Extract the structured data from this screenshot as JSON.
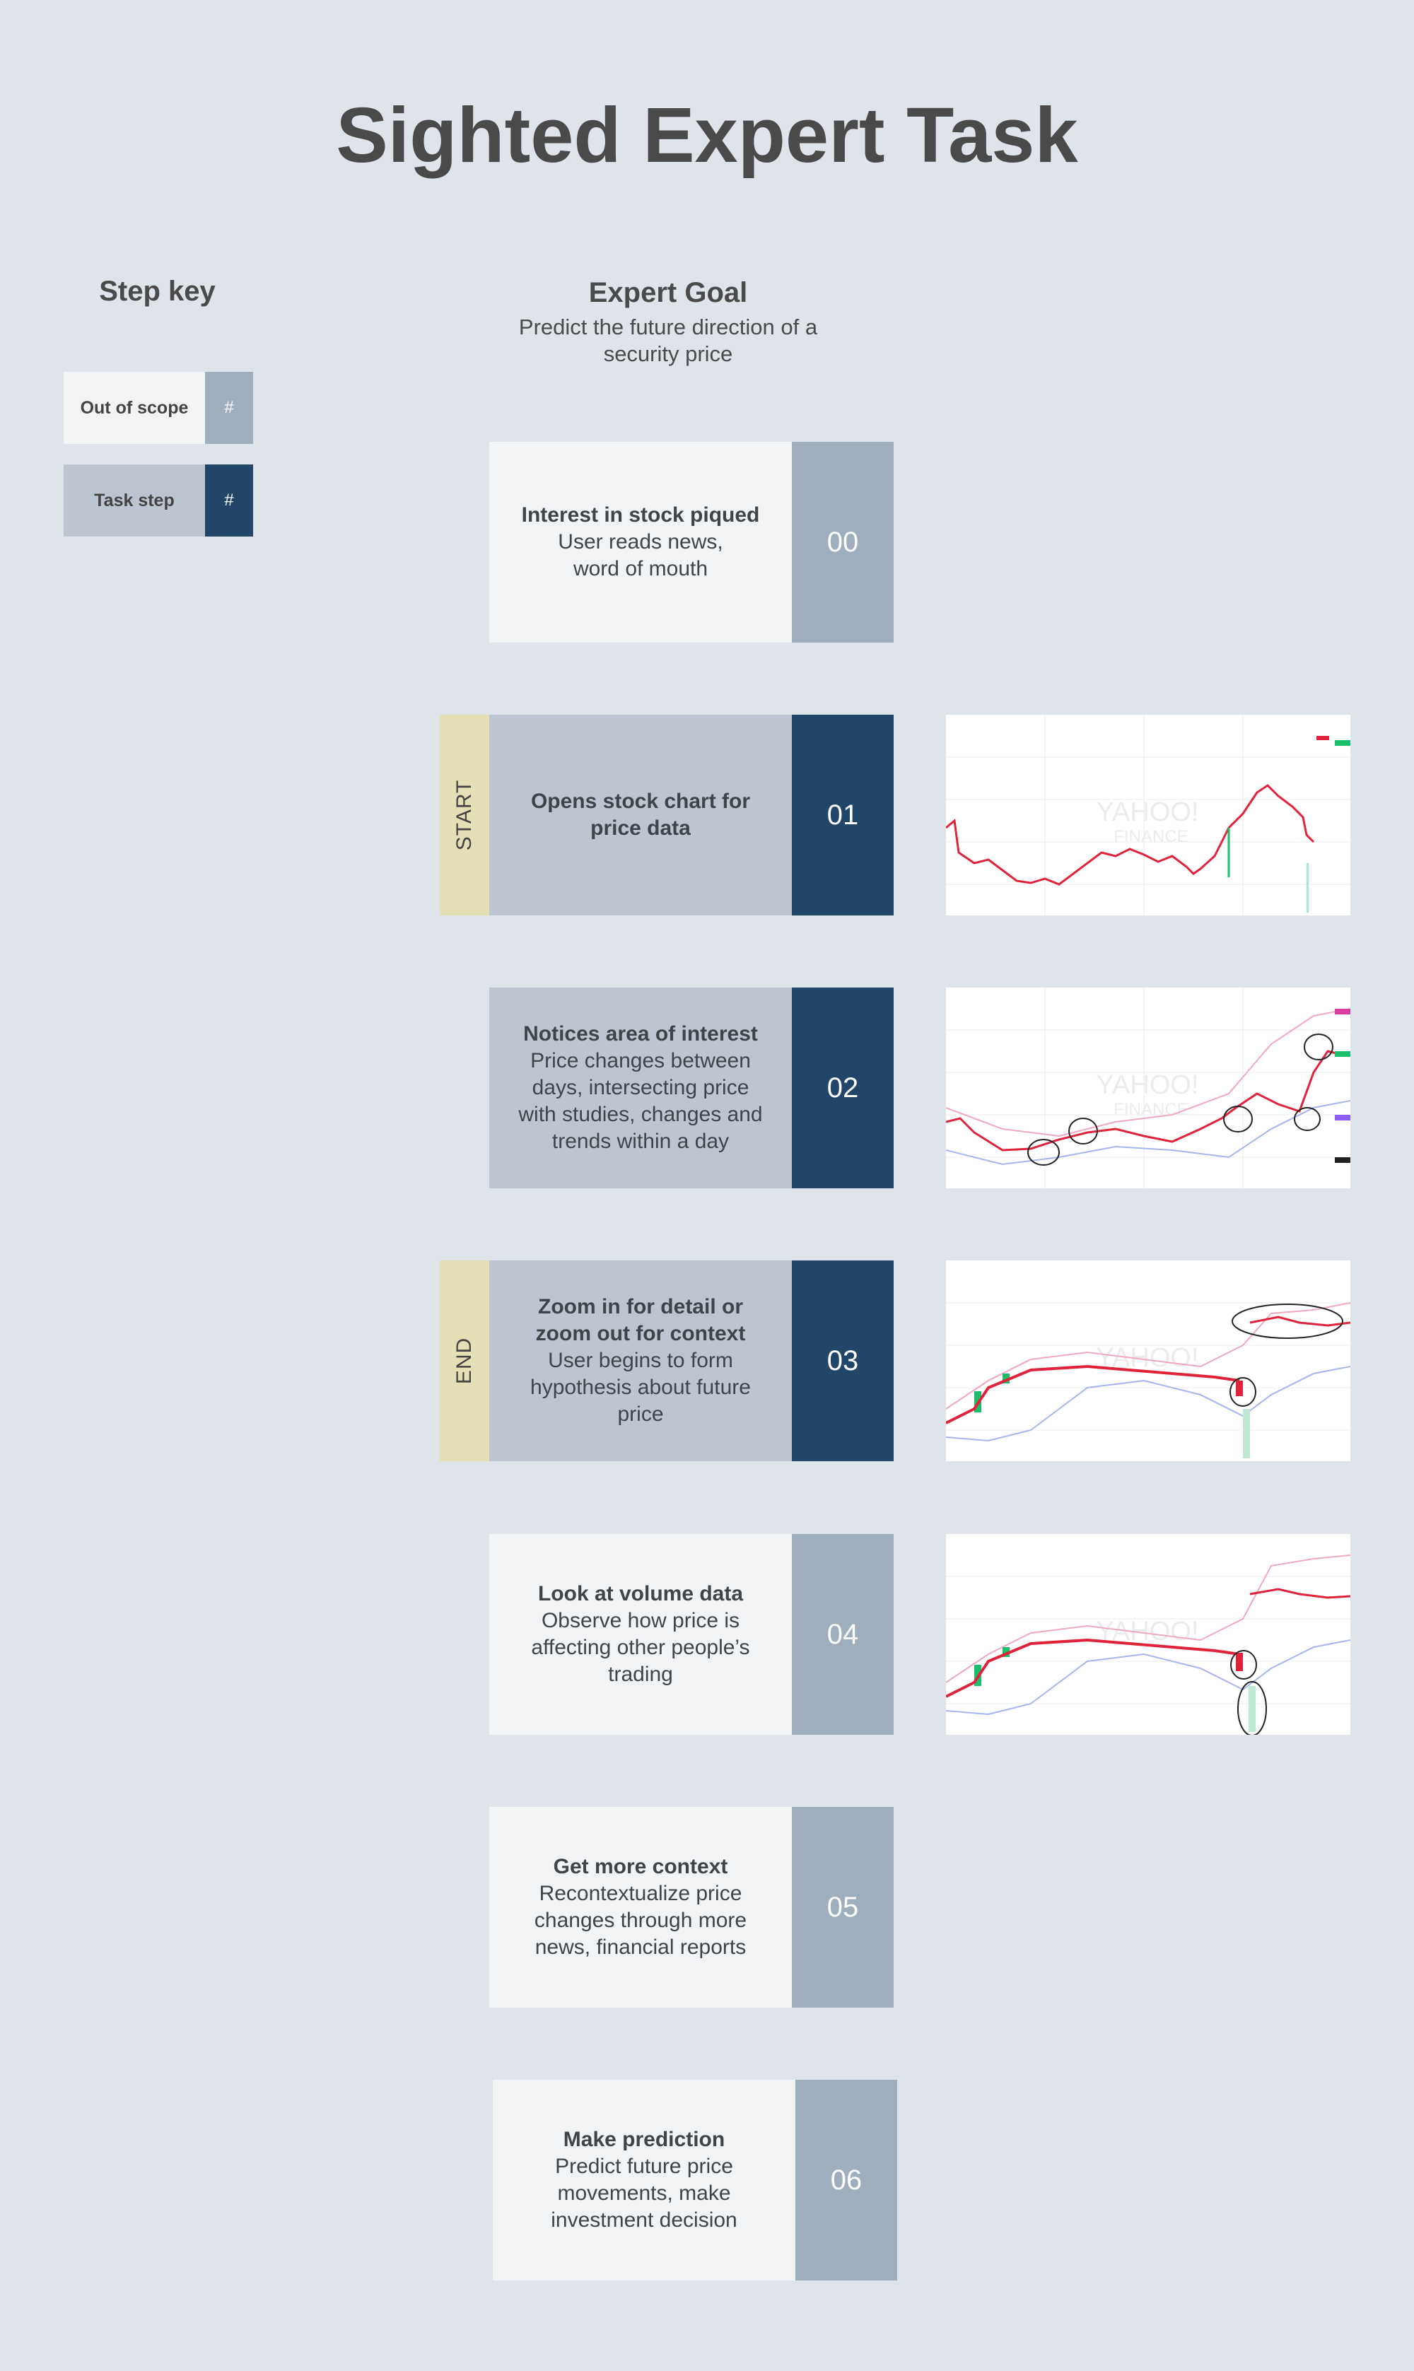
{
  "title": "Sighted Expert Task",
  "step_key": {
    "title": "Step key",
    "items": [
      {
        "label": "Out of scope",
        "symbol": "#"
      },
      {
        "label": "Task step",
        "symbol": "#"
      }
    ]
  },
  "goal": {
    "title": "Expert Goal",
    "subtitle_line1": "Predict the future direction of a",
    "subtitle_line2": "security price"
  },
  "markers": {
    "start": "START",
    "end": "END"
  },
  "steps": [
    {
      "num": "00",
      "heading": "Interest in stock piqued",
      "lines": [
        "User reads news,",
        "word of mouth"
      ],
      "kind": "out-of-scope"
    },
    {
      "num": "01",
      "heading_lines": [
        "Opens stock chart for",
        "price data"
      ],
      "lines": [],
      "kind": "task-step"
    },
    {
      "num": "02",
      "heading": "Notices area of interest",
      "lines": [
        "Price changes between",
        "days, intersecting price",
        "with studies, changes and",
        "trends within a day"
      ],
      "kind": "task-step"
    },
    {
      "num": "03",
      "heading_lines": [
        "Zoom in for detail or",
        "zoom out for context"
      ],
      "lines": [
        "User begins to form",
        "hypothesis about future",
        "price"
      ],
      "kind": "task-step"
    },
    {
      "num": "04",
      "heading": "Look at volume data",
      "lines": [
        "Observe how price is",
        "affecting other people’s",
        "trading"
      ],
      "kind": "out-of-scope"
    },
    {
      "num": "05",
      "heading": "Get more context",
      "lines": [
        "Recontextualize price",
        "changes through more",
        "news, financial reports"
      ],
      "kind": "out-of-scope"
    },
    {
      "num": "06",
      "heading": "Make prediction",
      "lines": [
        "Predict future price",
        "movements, make",
        "investment decision"
      ],
      "kind": "out-of-scope"
    }
  ],
  "thumbnails": {
    "watermark_line1": "YAHOO!",
    "watermark_line2": "FINANCE"
  },
  "colors": {
    "background": "#dfe3ea",
    "out_of_scope_box": "#f2f3f5",
    "out_of_scope_num": "#9eaebc",
    "task_step_box": "#bdc6d0",
    "task_step_num": "#22466a",
    "marker_tab": "#e5dfb5"
  }
}
